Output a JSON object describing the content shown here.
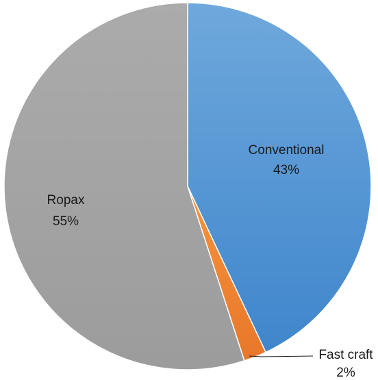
{
  "chart_data": {
    "type": "pie",
    "title": "",
    "start_angle_deg": 0,
    "direction": "clockwise",
    "slices": [
      {
        "name": "Conventional",
        "value": 43,
        "percent_label": "43%",
        "color_top": "#6FA8DC",
        "color_bottom": "#3F86CC"
      },
      {
        "name": "Fast craft",
        "value": 2,
        "percent_label": "2%",
        "color_top": "#F5943C",
        "color_bottom": "#E8772A"
      },
      {
        "name": "Ropax",
        "value": 55,
        "percent_label": "55%",
        "color_top": "#ABABAB",
        "color_bottom": "#9C9C9C"
      }
    ]
  }
}
